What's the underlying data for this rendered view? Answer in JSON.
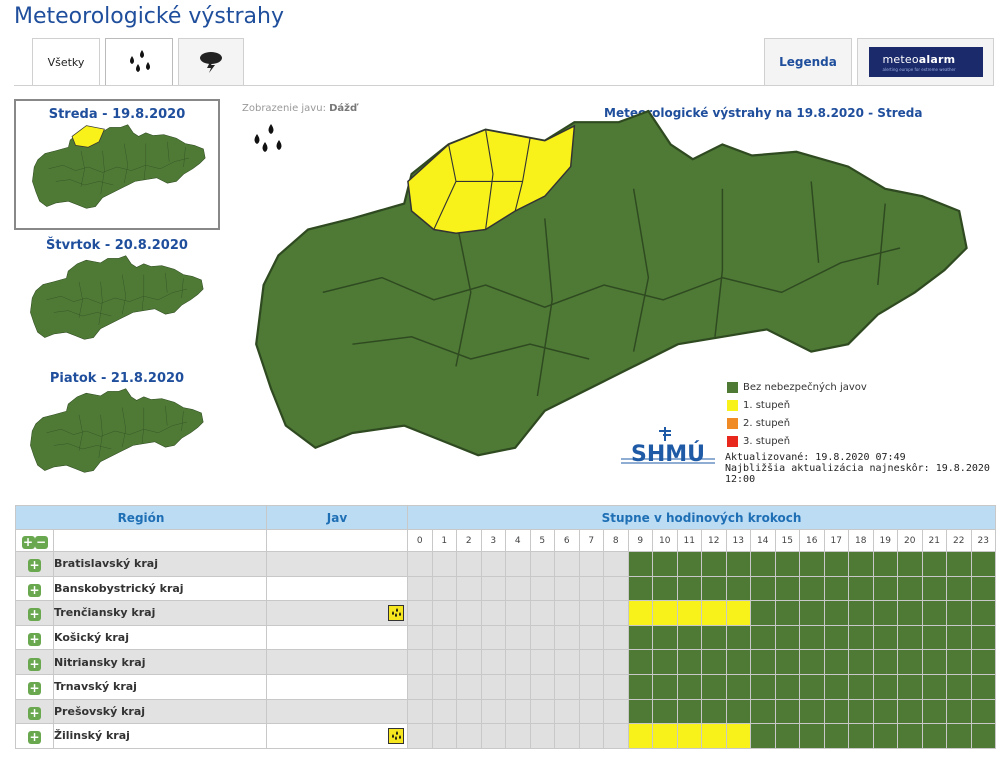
{
  "page": {
    "title": "Meteorologické výstrahy"
  },
  "tabs": {
    "all_label": "Všetky",
    "rain_icon": "rain-drops-icon",
    "storm_icon": "thunderstorm-icon",
    "legend_label": "Legenda",
    "meteoalarm_label_a": "meteo",
    "meteoalarm_label_b": "alarm",
    "meteoalarm_sub": "alerting europe for extreme weather"
  },
  "days": [
    {
      "label": "Streda - 19.8.2020",
      "selected": true
    },
    {
      "label": "Štvrtok - 20.8.2020",
      "selected": false
    },
    {
      "label": "Piatok - 21.8.2020",
      "selected": false
    }
  ],
  "map": {
    "display_prefix": "Zobrazenie javu:",
    "display_value": "Dážď",
    "title": "Meteorologické výstrahy na 19.8.2020 - Streda",
    "updated_line1": "Aktualizované: 19.8.2020 07:49",
    "updated_line2": "Najbližšia aktualizácia najneskôr: 19.8.2020 12:00",
    "logo_text": "SHMÚ"
  },
  "legend": [
    {
      "label": "Bez nebezpečných javov",
      "color": "#4e7a36"
    },
    {
      "label": "1. stupeň",
      "color": "#f8f21a"
    },
    {
      "label": "2. stupeň",
      "color": "#f08a24"
    },
    {
      "label": "3. stupeň",
      "color": "#e8281c"
    }
  ],
  "table": {
    "col_region": "Región",
    "col_jav": "Jav",
    "col_steps": "Stupne v hodinových krokoch",
    "hours": [
      "0",
      "1",
      "2",
      "3",
      "4",
      "5",
      "6",
      "7",
      "8",
      "9",
      "10",
      "11",
      "12",
      "13",
      "14",
      "15",
      "16",
      "17",
      "18",
      "19",
      "20",
      "21",
      "22",
      "23"
    ],
    "rows": [
      {
        "name": "Bratislavský kraj",
        "warn": false
      },
      {
        "name": "Banskobystrický kraj",
        "warn": false
      },
      {
        "name": "Trenčiansky kraj",
        "warn": true
      },
      {
        "name": "Košický kraj",
        "warn": false
      },
      {
        "name": "Nitriansky kraj",
        "warn": false
      },
      {
        "name": "Trnavský kraj",
        "warn": false
      },
      {
        "name": "Prešovský kraj",
        "warn": false
      },
      {
        "name": "Žilinský kraj",
        "warn": true
      }
    ]
  }
}
